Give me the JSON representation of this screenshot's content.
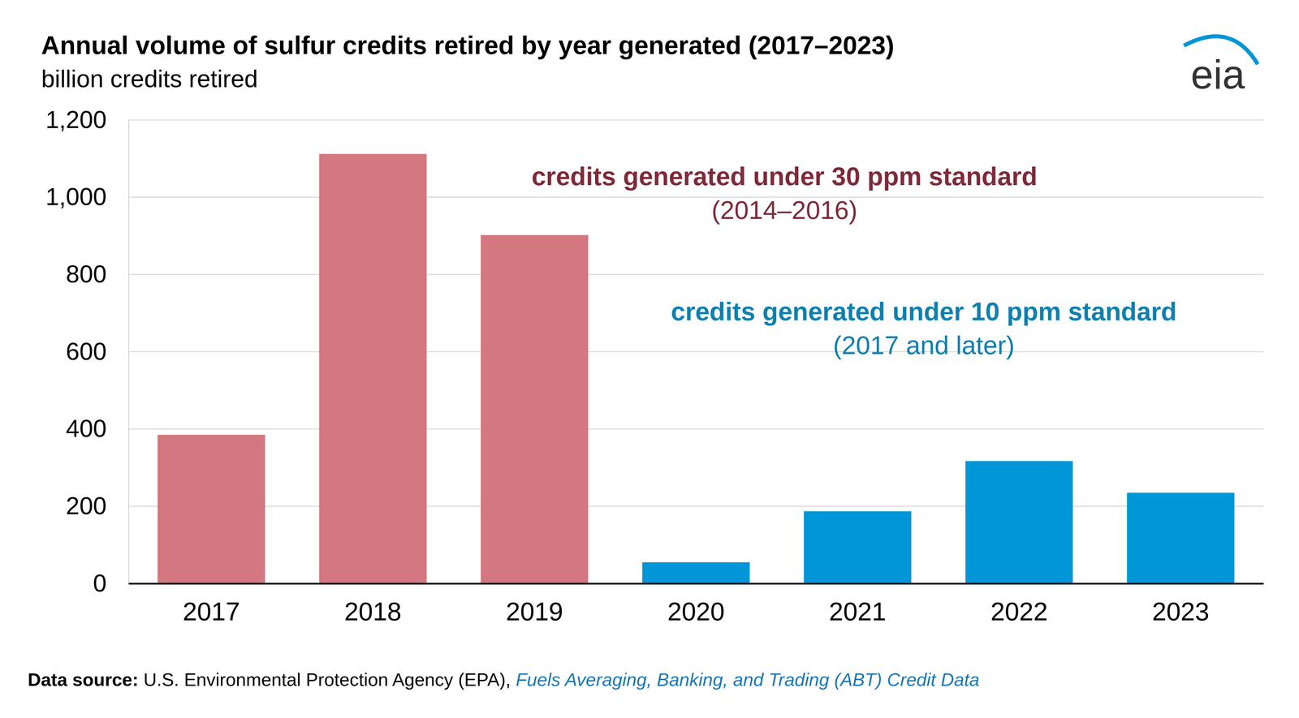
{
  "chart_data": {
    "type": "bar",
    "title": "Annual volume of sulfur credits retired by year generated (2017–2023)",
    "subtitle": "billion credits retired",
    "categories": [
      "2017",
      "2018",
      "2019",
      "2020",
      "2021",
      "2022",
      "2023"
    ],
    "values": [
      385,
      1112,
      902,
      55,
      187,
      317,
      235
    ],
    "colors": [
      "#d37780",
      "#d37780",
      "#d37780",
      "#0096d7",
      "#0096d7",
      "#0096d7",
      "#0096d7"
    ],
    "ylim": [
      0,
      1200
    ],
    "yticks": [
      0,
      200,
      400,
      600,
      800,
      {
        "value": 1000,
        "label": "1,000"
      },
      {
        "value": 1200,
        "label": "1,200"
      }
    ],
    "grid": true,
    "annotations": [
      {
        "text": "credits generated under 30 ppm standard",
        "subtext": "(2014–2016)"
      },
      {
        "text": "credits generated under 10 ppm standard",
        "subtext": "(2017 and later)"
      }
    ],
    "source": {
      "label": "Data source:",
      "text": "U.S. Environmental Protection Agency (EPA),",
      "link": "Fuels Averaging, Banking, and Trading (ABT) Credit Data"
    },
    "logo": "eia"
  }
}
